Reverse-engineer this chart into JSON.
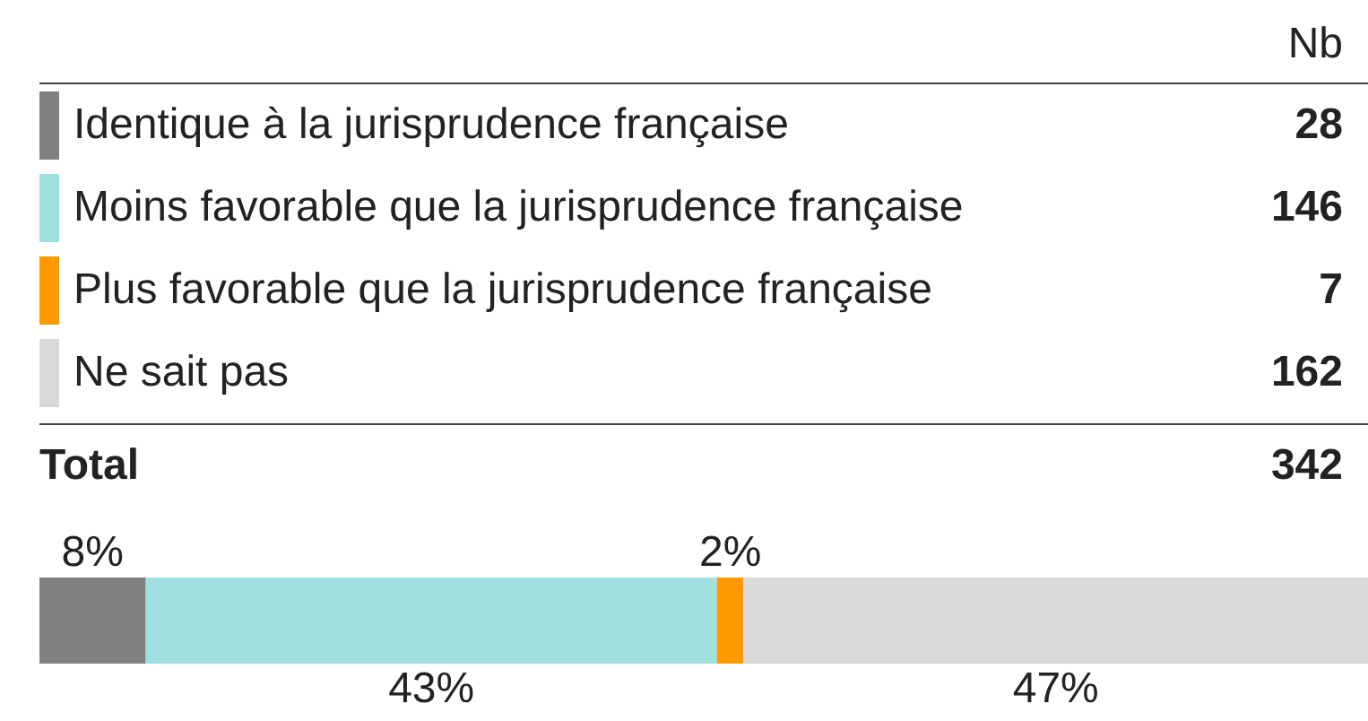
{
  "chart_data": {
    "type": "bar",
    "orientation": "horizontal",
    "stacked": true,
    "categories": [
      null
    ],
    "xlim": [
      0,
      100
    ],
    "tick_labels": false,
    "legend": "top",
    "annotations": [
      "Nb",
      "28",
      "146",
      "7",
      "162",
      "Total",
      "342"
    ],
    "series": [
      {
        "name": "Identique à la jurisprudence française",
        "color": "#808080",
        "values": [
          8
        ],
        "value_labels": [
          "8%"
        ]
      },
      {
        "name": "Moins favorable que la jurisprudence française",
        "color": "#a0e0e0",
        "values": [
          43
        ],
        "value_labels": [
          "43%"
        ]
      },
      {
        "name": "Plus favorable que la jurisprudence française",
        "color": "#ff9900",
        "values": [
          2
        ],
        "value_labels": [
          "2%"
        ]
      },
      {
        "name": "Ne sait pas",
        "color": "#d9d9d9",
        "values": [
          47
        ],
        "value_labels": [
          "47%"
        ]
      }
    ]
  }
}
